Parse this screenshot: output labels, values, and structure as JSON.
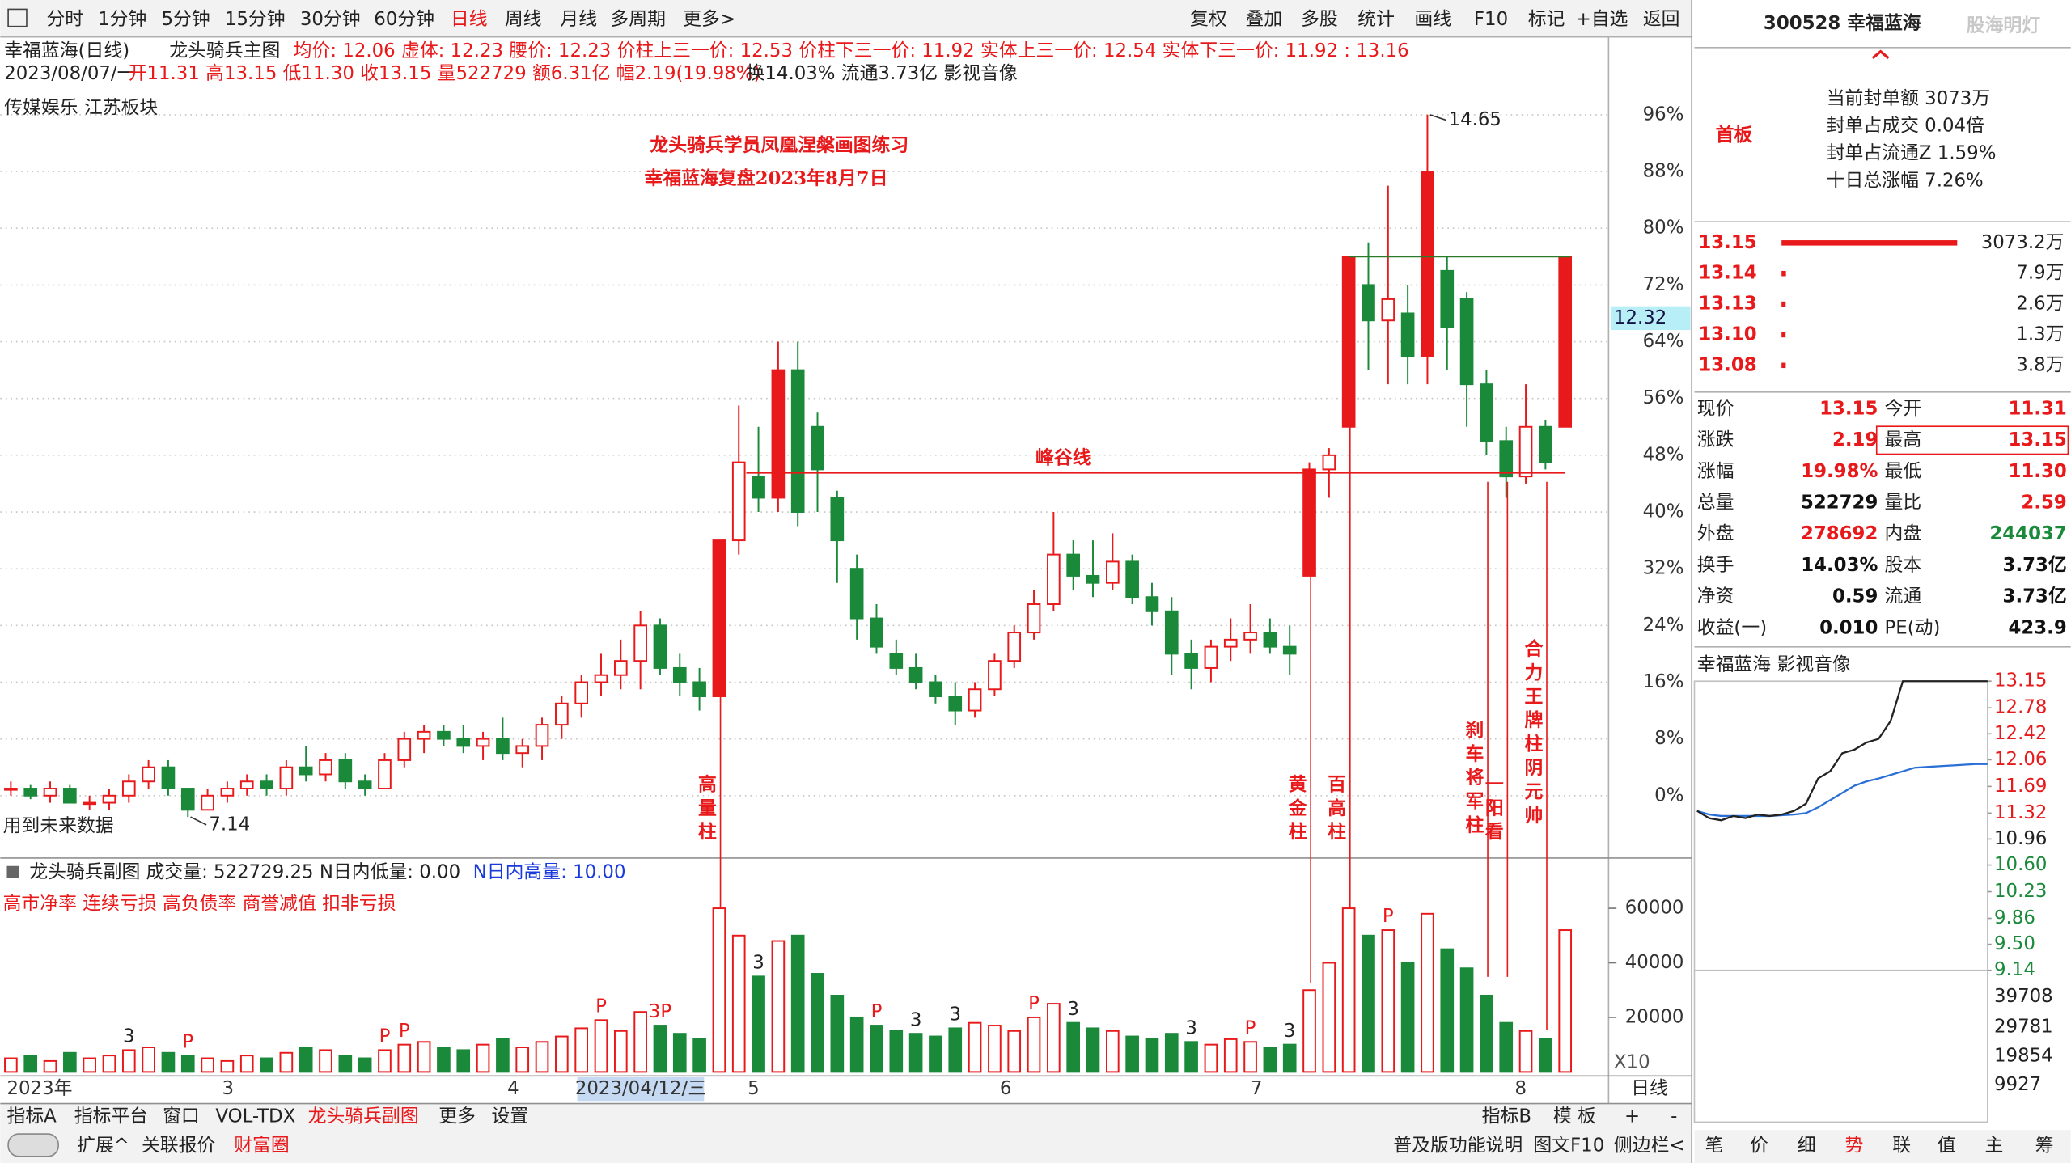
{
  "toolbar": {
    "periods": [
      "分时",
      "1分钟",
      "5分钟",
      "15分钟",
      "30分钟",
      "60分钟",
      "日线",
      "周线",
      "月线",
      "多周期",
      "更多>"
    ],
    "tools": [
      "复权",
      "叠加",
      "多股",
      "统计",
      "画线",
      "F10",
      "标记",
      "+自选",
      "返回"
    ]
  },
  "info": {
    "name": "幸福蓝海(日线)",
    "indicator": "龙头骑兵主图",
    "line1": "均价: 12.06 虚体: 12.23 腰价: 12.23 价柱上三一价: 12.53 价柱下三一价: 11.92 实体上三一价: 12.54 实体下三一价: 11.92 : 13.16",
    "date": "2023/08/07/一",
    "line2": "开11.31 高13.15 低11.30 收13.15 量522729 额6.31亿 幅2.19(19.98%)",
    "line3": "换14.03% 流通3.73亿 影视音像",
    "sector": "传媒娱乐 江苏板块"
  },
  "chart_data": {
    "type": "candlestick",
    "title": "龙头骑兵学员凤凰涅槃画图练习",
    "subtitle": "幸福蓝海复盘2023年8月7日",
    "open": [
      1,
      1,
      0,
      1,
      -1,
      -1,
      0,
      2,
      4,
      1,
      -2,
      0,
      1,
      2,
      1,
      4,
      3,
      5,
      2,
      1,
      5,
      8,
      9,
      8,
      7,
      8,
      6,
      7,
      10,
      13,
      16,
      17,
      19,
      24,
      18,
      16,
      14,
      36,
      45,
      42,
      60,
      52,
      42,
      32,
      25,
      20,
      18,
      16,
      14,
      12,
      15,
      19,
      23,
      27,
      34,
      31,
      30,
      33,
      28,
      26,
      20,
      18,
      21,
      22,
      23,
      21,
      31,
      46,
      52,
      72,
      67,
      68,
      62,
      74,
      70,
      58,
      50,
      45,
      52,
      52
    ],
    "high": [
      2,
      1.5,
      2,
      1.5,
      0,
      1,
      3,
      5,
      5,
      1,
      1,
      2,
      3,
      3,
      5,
      7,
      6,
      6,
      3,
      6,
      9,
      10,
      10,
      10,
      9,
      11,
      8,
      11,
      14,
      17,
      20,
      22,
      26,
      25,
      20,
      18,
      36,
      55,
      52,
      64,
      64,
      54,
      43,
      34,
      27,
      22,
      20,
      17,
      16,
      16,
      20,
      24,
      29,
      40,
      36,
      36,
      37,
      34,
      30,
      28,
      22,
      22,
      25,
      27,
      25,
      24,
      47,
      49,
      76,
      78,
      86,
      72,
      96,
      76,
      71,
      60,
      52,
      58,
      53,
      76
    ],
    "low": [
      0,
      -0.5,
      -1,
      -1,
      -2,
      -2,
      -1,
      1,
      0,
      -3,
      -2,
      -1,
      0,
      0,
      0,
      2,
      2,
      1,
      0,
      1,
      4,
      6,
      7,
      6,
      5,
      5,
      4,
      5,
      8,
      11,
      14,
      15,
      15,
      17,
      14,
      12,
      14,
      34,
      40,
      40,
      38,
      40,
      30,
      22,
      20,
      17,
      15,
      13,
      10,
      11,
      14,
      18,
      22,
      26,
      29,
      28,
      29,
      27,
      24,
      17,
      15,
      16,
      19,
      20,
      20,
      17,
      31,
      42,
      52,
      60,
      58,
      58,
      58,
      60,
      52,
      48,
      42,
      44,
      46,
      52
    ],
    "close": [
      1,
      0,
      1,
      -1,
      -1,
      0,
      2,
      4,
      1,
      -2,
      0,
      1,
      2,
      1,
      4,
      3,
      5,
      2,
      1,
      5,
      8,
      9,
      8,
      7,
      8,
      6,
      7,
      10,
      13,
      16,
      17,
      19,
      24,
      18,
      16,
      14,
      36,
      47,
      42,
      60,
      40,
      46,
      36,
      25,
      21,
      18,
      16,
      14,
      12,
      15,
      19,
      23,
      27,
      34,
      31,
      30,
      33,
      28,
      26,
      20,
      18,
      21,
      22,
      23,
      21,
      20,
      46,
      48,
      76,
      67,
      70,
      62,
      88,
      66,
      58,
      50,
      45,
      52,
      47,
      76
    ],
    "ylim": [
      -8.8,
      106.6
    ],
    "yticks": [
      {
        "value": 96,
        "label": "96%"
      },
      {
        "value": 88,
        "label": "88%"
      },
      {
        "value": 80,
        "label": "80%"
      },
      {
        "value": 72,
        "label": "72%"
      },
      {
        "value": 64,
        "label": "64%"
      },
      {
        "value": 56,
        "label": "56%"
      },
      {
        "value": 48,
        "label": "48%"
      },
      {
        "value": 40,
        "label": "40%"
      },
      {
        "value": 32,
        "label": "32%"
      },
      {
        "value": 24,
        "label": "24%"
      },
      {
        "value": 16,
        "label": "16%"
      },
      {
        "value": 8,
        "label": "8%"
      },
      {
        "value": 0,
        "label": "0%"
      }
    ],
    "grid": true,
    "up_color": "#e8191a",
    "down_color": "#1a8a3a",
    "high_label": "14.65",
    "low_label": "7.14",
    "future_note": "用到未来数据",
    "price_tag": "12.32",
    "line_level": 45.5,
    "line_label": "峰谷线",
    "box_level": 76,
    "vertical_labels": [
      "高量柱",
      "黄金柱",
      "百高柱",
      "刹车将军柱",
      "一阳看",
      "合力王牌柱阴元帅"
    ],
    "x_labels": [
      "2023年",
      "3",
      "4",
      "5",
      "6",
      "7",
      "8"
    ],
    "cursor_date": "2023/04/12/三",
    "period_label": "日线",
    "volume": {
      "header": "龙头骑兵副图 成交量: 522729.25 N日内低量: 0.00",
      "header2": "N日内高量: 10.00",
      "warnings": "高市净率 连续亏损 高负债率 商誉减值 扣非亏损",
      "values": [
        5000,
        6000,
        4000,
        7000,
        5000,
        6000,
        8000,
        9000,
        7000,
        6000,
        5000,
        4000,
        6000,
        5000,
        7000,
        9000,
        8000,
        6000,
        5000,
        8000,
        10000,
        11000,
        9000,
        8000,
        10000,
        12000,
        9000,
        11000,
        13000,
        16000,
        19000,
        15000,
        22000,
        17000,
        14000,
        12000,
        60000,
        50000,
        35000,
        48000,
        50000,
        36000,
        28000,
        20000,
        17000,
        15000,
        14000,
        13000,
        16000,
        18000,
        17000,
        15000,
        20000,
        25000,
        18000,
        16000,
        15000,
        13000,
        12000,
        14000,
        11000,
        10000,
        12000,
        11000,
        9000,
        10000,
        30000,
        40000,
        60000,
        50000,
        52000,
        40000,
        58000,
        45000,
        38000,
        28000,
        18000,
        15000,
        12000,
        52000
      ],
      "ylim": [
        0,
        76000
      ],
      "yticks": [
        60000,
        40000,
        20000
      ],
      "scale_label": "X10",
      "marks": [
        "3",
        "P",
        "P",
        "P",
        "P",
        "3P",
        "3",
        "P",
        "3",
        "3",
        "P",
        "3",
        "3",
        "P",
        "3",
        "P"
      ]
    }
  },
  "panel": {
    "code_name": "300528 幸福蓝海",
    "watermark": "股海明灯",
    "board": "首板",
    "stats": [
      "当前封单额 3073万",
      "封单占成交 0.04倍",
      "封单占流通Z 1.59%",
      "十日总涨幅 7.26%"
    ],
    "bids": {
      "prices": [
        "13.15",
        "13.14",
        "13.13",
        "13.10",
        "13.08"
      ],
      "volumes": [
        3073.2,
        7.9,
        2.6,
        1.3,
        3.8
      ],
      "labels": [
        "3073.2万",
        "7.9万",
        "2.6万",
        "1.3万",
        "3.8万"
      ]
    },
    "quote": [
      [
        "现价",
        "13.15",
        "今开",
        "11.31"
      ],
      [
        "涨跌",
        "2.19",
        "最高",
        "13.15"
      ],
      [
        "涨幅",
        "19.98%",
        "最低",
        "11.30"
      ],
      [
        "总量",
        "522729",
        "量比",
        "2.59"
      ],
      [
        "外盘",
        "278692",
        "内盘",
        "244037"
      ],
      [
        "换手",
        "14.03%",
        "股本",
        "3.73亿"
      ],
      [
        "净资",
        "0.59",
        "流通",
        "3.73亿"
      ],
      [
        "收益(一)",
        "0.010",
        "PE(动)",
        "423.9"
      ]
    ],
    "mini": {
      "title": "幸福蓝海 影视音像",
      "price": [
        11.35,
        11.25,
        11.22,
        11.28,
        11.25,
        11.3,
        11.28,
        11.3,
        11.35,
        11.45,
        11.8,
        11.9,
        12.15,
        12.2,
        12.3,
        12.35,
        12.6,
        13.15,
        13.15,
        13.15,
        13.15,
        13.15,
        13.15,
        13.15,
        13.15
      ],
      "avg": [
        11.35,
        11.3,
        11.28,
        11.28,
        11.28,
        11.28,
        11.28,
        11.29,
        11.3,
        11.32,
        11.4,
        11.5,
        11.6,
        11.7,
        11.76,
        11.8,
        11.85,
        11.9,
        11.95,
        11.96,
        11.97,
        11.98,
        11.99,
        12.0,
        12.0
      ],
      "ylim": [
        9.14,
        13.15
      ],
      "yticks": [
        13.15,
        12.78,
        12.42,
        12.06,
        11.69,
        11.32,
        10.96,
        {
          "value": 10.6,
          "label": "10.60"
        },
        10.23,
        9.86,
        {
          "value": 9.5,
          "label": "9.50"
        },
        9.14
      ],
      "vol_ticks": [
        "39708",
        "29781",
        "19854",
        "9927"
      ]
    },
    "tabs": [
      "笔",
      "价",
      "细",
      "势",
      "联",
      "值",
      "主",
      "筹"
    ]
  },
  "bottom": {
    "tabs": [
      "指标A",
      "指标平台",
      "窗口",
      "VOL-TDX",
      "龙头骑兵副图",
      "更多",
      "设置"
    ],
    "right_tabs": [
      "指标B",
      "模 板",
      "+",
      "-"
    ],
    "row2": [
      "扩展^",
      "关联报价",
      "财富圈"
    ],
    "row2_right": [
      "普及版功能说明",
      "图文F10",
      "侧边栏<"
    ]
  }
}
